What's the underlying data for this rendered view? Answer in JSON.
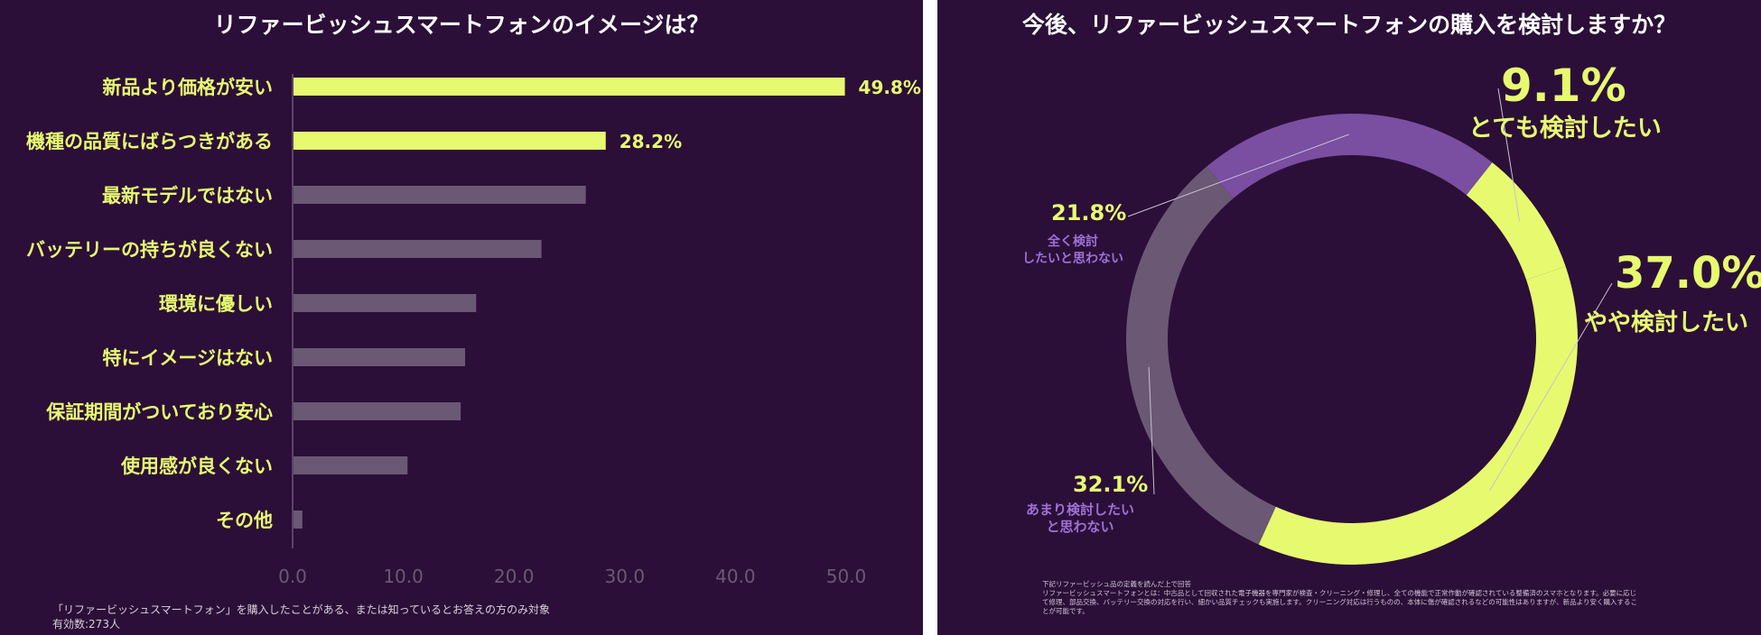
{
  "colors": {
    "background": "#2b0f38",
    "highlight": "#e7fa6f",
    "muted_bar": "#6b5874",
    "purple": "#7a4ea1",
    "purple_text": "#9f71d6",
    "axis_tick": "#6b5874"
  },
  "chart_data": [
    {
      "type": "bar",
      "orientation": "horizontal",
      "title": "リファービッシュスマートフォンのイメージは？",
      "categories": [
        "新品より価格が安い",
        "機種の品質にばらつきがある",
        "最新モデルではない",
        "バッテリーの持ちが良くない",
        "環境に優しい",
        "特にイメージはない",
        "保証期間がついており安心",
        "使用感が良くない",
        "その他"
      ],
      "values": [
        49.8,
        28.2,
        26.4,
        22.4,
        16.5,
        15.5,
        15.1,
        10.3,
        0.8
      ],
      "data_labels": [
        "49.8%",
        "28.2%",
        "",
        "",
        "",
        "",
        "",
        "",
        ""
      ],
      "highlighted": [
        true,
        true,
        false,
        false,
        false,
        false,
        false,
        false,
        false
      ],
      "xlim": [
        0,
        50
      ],
      "xticks": [
        "0.0",
        "10.0",
        "20.0",
        "30.0",
        "40.0",
        "50.0"
      ],
      "xtick_values": [
        0,
        10,
        20,
        30,
        40,
        50
      ],
      "note_lines": [
        "「リファービッシュスマートフォン」を購入したことがある、または知っているとお答えの方のみ対象",
        "有効数:273人"
      ]
    },
    {
      "type": "pie",
      "style": "donut",
      "title": "今後、リファービッシュスマートフォンの購入を検討しますか？",
      "slices": [
        {
          "label": "とても検討したい",
          "value": 9.1,
          "pct": "9.1%",
          "color": "#e7fa6f"
        },
        {
          "label": "やや検討したい",
          "value": 37.0,
          "pct": "37.0%",
          "color": "#e7fa6f"
        },
        {
          "label": "あまり検討したいと思わない",
          "label_lines": [
            "あまり検討したい",
            "と思わない"
          ],
          "value": 32.1,
          "pct": "32.1%",
          "color": "#6b5874"
        },
        {
          "label": "全く検討したいと思わない",
          "label_lines": [
            "全く検討",
            "したいと思わない"
          ],
          "value": 21.8,
          "pct": "21.8%",
          "color": "#7a4ea1"
        }
      ],
      "note_lines": [
        "下記リファービッシュ品の定義を読んだ上で回答",
        "リファービッシュスマートフォンとは：中古品として回収された電子機器を専門家が検査・クリーニング・修理し、全ての機能で正常作動が確認されている整備済のスマホとなります。必要に応じ",
        "て修理、部品交換、バッテリー交換の対応を行い、細かい品質チェックも実施します。クリーニング対応は行うものの、本体に傷が確認されるなどの可能性はありますが、新品より安く購入するこ",
        "とが可能です。"
      ]
    }
  ]
}
